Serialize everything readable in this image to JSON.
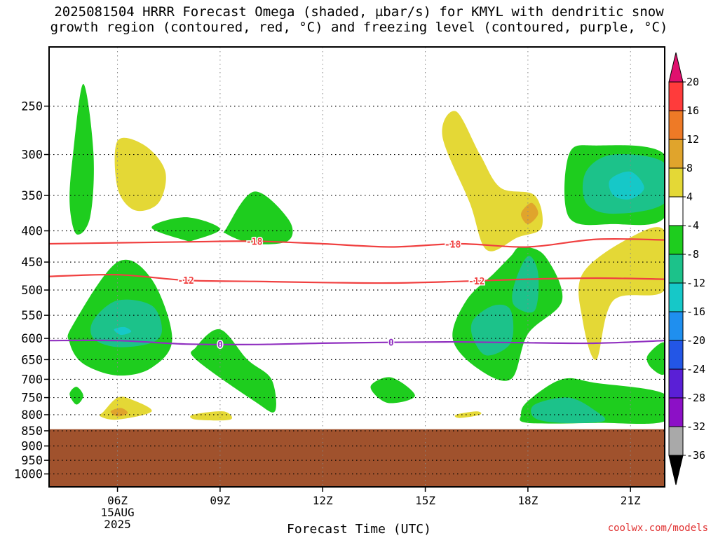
{
  "title_line1": "2025081504 HRRR Forecast Omega (shaded, µbar/s) for KMYL with dendritic snow",
  "title_line2": "growth region (contoured, red, °C) and freezing level (contoured, purple, °C)",
  "credit": "coolwx.com/models",
  "chart_data": {
    "type": "contour",
    "title": "2025081504 HRRR Forecast Omega (shaded, µbar/s) for KMYL with dendritic snow growth region (contoured, red, °C) and freezing level (contoured, purple, °C)",
    "xlabel": "Forecast Time (UTC)",
    "ylabel": "",
    "x_ticks": [
      {
        "label": "06Z",
        "hour": 6,
        "sub": [
          "15AUG",
          "2025"
        ]
      },
      {
        "label": "09Z",
        "hour": 9,
        "sub": []
      },
      {
        "label": "12Z",
        "hour": 12,
        "sub": []
      },
      {
        "label": "15Z",
        "hour": 15,
        "sub": []
      },
      {
        "label": "18Z",
        "hour": 18,
        "sub": []
      },
      {
        "label": "21Z",
        "hour": 21,
        "sub": []
      }
    ],
    "xlim_hours": [
      4,
      22
    ],
    "y_scale": "log-pressure",
    "y_ticks": [
      250,
      300,
      350,
      400,
      450,
      500,
      550,
      600,
      650,
      700,
      750,
      800,
      850,
      900,
      950,
      1000
    ],
    "ylim_hpa": [
      200,
      1050
    ],
    "grid": true,
    "below_ground_hpa": 845,
    "colorbar": {
      "labels": [
        "20",
        "16",
        "12",
        "8",
        "4",
        "-4",
        "-8",
        "-12",
        "-16",
        "-20",
        "-24",
        "-28",
        "-32",
        "-36"
      ],
      "colors": [
        "#ff3b3b",
        "#ee7a26",
        "#e0a42c",
        "#e4d836",
        "#ffffff",
        "#1ecd1e",
        "#1cc28a",
        "#16c8c8",
        "#1f8fef",
        "#2356e6",
        "#5a1fd6",
        "#8c10c6",
        "#a9a9a9"
      ],
      "top_arrow_color": "#e0106e",
      "bottom_arrow_color": "#000000"
    },
    "contours": [
      {
        "name": "-18",
        "color": "#f04040",
        "points": [
          [
            4,
            420
          ],
          [
            8,
            417
          ],
          [
            10,
            416
          ],
          [
            12,
            420
          ],
          [
            14,
            425
          ],
          [
            16,
            420
          ],
          [
            18,
            425
          ],
          [
            20,
            413
          ],
          [
            22,
            414
          ]
        ]
      },
      {
        "name": "-12",
        "color": "#f04040",
        "points": [
          [
            4,
            475
          ],
          [
            6,
            472
          ],
          [
            8,
            482
          ],
          [
            10,
            484
          ],
          [
            12,
            486
          ],
          [
            14,
            487
          ],
          [
            16,
            484
          ],
          [
            18,
            480
          ],
          [
            20,
            478
          ],
          [
            22,
            480
          ]
        ]
      },
      {
        "name": "0",
        "color": "#9030c0",
        "points": [
          [
            4,
            605
          ],
          [
            6,
            605
          ],
          [
            8,
            613
          ],
          [
            10,
            614
          ],
          [
            12,
            611
          ],
          [
            14,
            609
          ],
          [
            16,
            608
          ],
          [
            18,
            610
          ],
          [
            20,
            611
          ],
          [
            22,
            605
          ]
        ]
      }
    ],
    "omega_regions": [
      {
        "level": "-4",
        "color": "#1ecd1e",
        "points": [
          [
            5,
            230
          ],
          [
            4.7,
            300
          ],
          [
            4.6,
            360
          ],
          [
            4.8,
            405
          ],
          [
            5.2,
            380
          ],
          [
            5.3,
            300
          ]
        ]
      },
      {
        "level": "-4",
        "color": "#1ecd1e",
        "points": [
          [
            7,
            395
          ],
          [
            8,
            380
          ],
          [
            9,
            397
          ],
          [
            8.2,
            415
          ],
          [
            8,
            415
          ]
        ]
      },
      {
        "level": "-4",
        "color": "#1ecd1e",
        "points": [
          [
            9.2,
            395
          ],
          [
            10,
            345
          ],
          [
            11,
            383
          ],
          [
            11,
            415
          ],
          [
            10,
            420
          ],
          [
            9.2,
            405
          ]
        ]
      },
      {
        "level": "-4",
        "color": "#1ecd1e",
        "points": [
          [
            4.7,
            570
          ],
          [
            6,
            450
          ],
          [
            7,
            480
          ],
          [
            7.6,
            600
          ],
          [
            7,
            670
          ],
          [
            6,
            690
          ],
          [
            5,
            660
          ],
          [
            4.6,
            610
          ]
        ]
      },
      {
        "level": "-4",
        "color": "#1ecd1e",
        "points": [
          [
            8.3,
            620
          ],
          [
            9,
            580
          ],
          [
            9.8,
            650
          ],
          [
            10.5,
            700
          ],
          [
            10.6,
            790
          ],
          [
            10,
            760
          ],
          [
            8.3,
            650
          ]
        ]
      },
      {
        "level": "-4",
        "color": "#1ecd1e",
        "points": [
          [
            4.6,
            740
          ],
          [
            4.8,
            720
          ],
          [
            5,
            745
          ],
          [
            4.8,
            770
          ]
        ]
      },
      {
        "level": "-4",
        "color": "#1ecd1e",
        "points": [
          [
            13.4,
            720
          ],
          [
            14,
            695
          ],
          [
            14.7,
            745
          ],
          [
            13.9,
            765
          ]
        ]
      },
      {
        "level": "-4",
        "color": "#1ecd1e",
        "points": [
          [
            15.8,
            600
          ],
          [
            16.2,
            520
          ],
          [
            17,
            470
          ],
          [
            17.5,
            440
          ],
          [
            17.8,
            425
          ],
          [
            18.5,
            440
          ],
          [
            19,
            520
          ],
          [
            18,
            590
          ],
          [
            17.5,
            700
          ],
          [
            16.5,
            670
          ]
        ]
      },
      {
        "level": "-4",
        "color": "#1ecd1e",
        "points": [
          [
            18,
            760
          ],
          [
            19,
            700
          ],
          [
            20,
            710
          ],
          [
            22,
            740
          ],
          [
            22,
            820
          ],
          [
            20,
            825
          ],
          [
            18,
            825
          ],
          [
            17.8,
            800
          ]
        ]
      },
      {
        "level": "-4",
        "color": "#1ecd1e",
        "points": [
          [
            19.2,
            300
          ],
          [
            20,
            290
          ],
          [
            22,
            300
          ],
          [
            22,
            380
          ],
          [
            20.5,
            390
          ],
          [
            19.2,
            380
          ]
        ]
      },
      {
        "level": "-4",
        "color": "#1ecd1e",
        "points": [
          [
            21.5,
            640
          ],
          [
            22,
            610
          ],
          [
            22,
            685
          ],
          [
            21.6,
            670
          ]
        ]
      },
      {
        "level": "-8",
        "color": "#1cc28a",
        "points": [
          [
            5.3,
            560
          ],
          [
            6,
            520
          ],
          [
            7,
            530
          ],
          [
            7.3,
            580
          ],
          [
            7,
            610
          ],
          [
            6,
            620
          ],
          [
            5.3,
            600
          ]
        ]
      },
      {
        "level": "-8",
        "color": "#1cc28a",
        "points": [
          [
            16.4,
            560
          ],
          [
            17,
            530
          ],
          [
            17.5,
            540
          ],
          [
            17.5,
            610
          ],
          [
            16.8,
            640
          ],
          [
            16.4,
            600
          ]
        ]
      },
      {
        "level": "-8",
        "color": "#1cc28a",
        "points": [
          [
            17.6,
            490
          ],
          [
            18,
            440
          ],
          [
            18.3,
            470
          ],
          [
            18.2,
            540
          ],
          [
            17.6,
            530
          ]
        ]
      },
      {
        "level": "-8",
        "color": "#1cc28a",
        "points": [
          [
            18.2,
            770
          ],
          [
            19.2,
            750
          ],
          [
            20,
            790
          ],
          [
            20.2,
            820
          ],
          [
            19,
            825
          ],
          [
            18.2,
            810
          ]
        ]
      },
      {
        "level": "-8",
        "color": "#1cc28a",
        "points": [
          [
            19.7,
            320
          ],
          [
            20.5,
            300
          ],
          [
            22,
            310
          ],
          [
            22,
            360
          ],
          [
            20.5,
            375
          ],
          [
            19.7,
            360
          ]
        ]
      },
      {
        "level": "-12",
        "color": "#16c8c8",
        "points": [
          [
            20.4,
            330
          ],
          [
            21,
            320
          ],
          [
            21.4,
            340
          ],
          [
            21,
            355
          ],
          [
            20.5,
            350
          ]
        ]
      },
      {
        "level": "-12",
        "color": "#16c8c8",
        "points": [
          [
            5.9,
            580
          ],
          [
            6.2,
            575
          ],
          [
            6.4,
            585
          ],
          [
            6.1,
            592
          ]
        ]
      },
      {
        "level": "4",
        "color": "#e4d836",
        "points": [
          [
            6,
            285
          ],
          [
            6.8,
            290
          ],
          [
            7.4,
            320
          ],
          [
            7.2,
            360
          ],
          [
            6.5,
            370
          ],
          [
            6,
            340
          ]
        ]
      },
      {
        "level": "4",
        "color": "#e4d836",
        "points": [
          [
            15.5,
            280
          ],
          [
            15.9,
            255
          ],
          [
            16.6,
            300
          ],
          [
            17.2,
            340
          ],
          [
            18.2,
            350
          ],
          [
            18.4,
            395
          ],
          [
            17.7,
            410
          ],
          [
            16.8,
            430
          ],
          [
            16.3,
            360
          ]
        ]
      },
      {
        "level": "4",
        "color": "#e4d836",
        "points": [
          [
            19.6,
            470
          ],
          [
            21,
            410
          ],
          [
            22,
            400
          ],
          [
            22,
            500
          ],
          [
            20.5,
            520
          ],
          [
            20,
            650
          ],
          [
            19.6,
            560
          ]
        ]
      },
      {
        "level": "4",
        "color": "#e4d836",
        "points": [
          [
            5.6,
            790
          ],
          [
            6,
            750
          ],
          [
            6.4,
            755
          ],
          [
            7,
            790
          ],
          [
            6,
            815
          ],
          [
            5.5,
            805
          ]
        ]
      },
      {
        "level": "4",
        "color": "#e4d836",
        "points": [
          [
            8.2,
            800
          ],
          [
            9.1,
            790
          ],
          [
            9.3,
            815
          ],
          [
            8.3,
            815
          ]
        ]
      },
      {
        "level": "4",
        "color": "#e4d836",
        "points": [
          [
            15.9,
            800
          ],
          [
            16.5,
            790
          ],
          [
            16.6,
            800
          ],
          [
            16,
            810
          ]
        ]
      },
      {
        "level": "8",
        "color": "#e0a42c",
        "points": [
          [
            17.8,
            375
          ],
          [
            18.1,
            360
          ],
          [
            18.3,
            375
          ],
          [
            18,
            390
          ]
        ]
      },
      {
        "level": "8",
        "color": "#e0a42c",
        "points": [
          [
            5.8,
            790
          ],
          [
            6.1,
            780
          ],
          [
            6.3,
            795
          ],
          [
            6,
            805
          ]
        ]
      }
    ]
  }
}
